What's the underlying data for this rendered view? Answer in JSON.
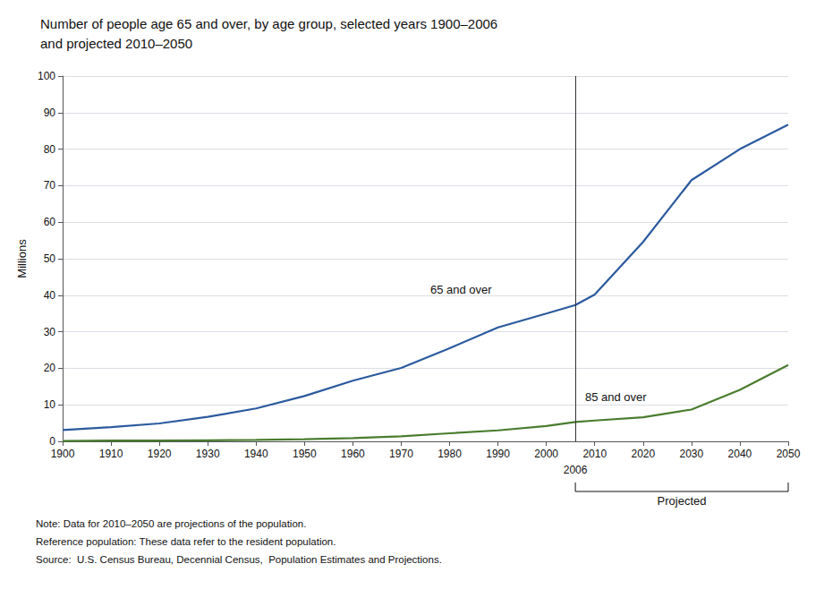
{
  "chart_data": {
    "type": "line",
    "title": "Number of people age 65 and over, by age group, selected years 1900–2006",
    "subtitle": "and projected 2010–2050",
    "y_label": "Millions",
    "series": [
      {
        "color": "#2b5a9e",
        "x": [
          1900,
          1910,
          1920,
          1930,
          1940,
          1950,
          1960,
          1970,
          1980,
          1990,
          2000,
          2006
        ],
        "values": [
          3.1,
          3.9,
          4.9,
          6.7,
          9.0,
          12.4,
          16.6,
          20.1,
          25.5,
          31.2,
          35.0,
          37.3
        ]
      },
      {
        "color": "#2b5a9e",
        "x": [
          2006,
          2010,
          2020,
          2030,
          2040,
          2050
        ],
        "values": [
          37.3,
          40.2,
          54.6,
          71.5,
          80.0,
          86.7
        ]
      },
      {
        "color": "#4a7c2f",
        "x": [
          1900,
          1910,
          1920,
          1930,
          1940,
          1950,
          1960,
          1970,
          1980,
          1990,
          2000,
          2006
        ],
        "values": [
          0.1,
          0.2,
          0.2,
          0.3,
          0.4,
          0.6,
          0.9,
          1.4,
          2.2,
          3.0,
          4.2,
          5.3
        ]
      },
      {
        "color": "#4a7c2f",
        "x": [
          2006,
          2010,
          2020,
          2030,
          2040,
          2050
        ],
        "values": [
          5.3,
          5.7,
          6.6,
          8.7,
          14.1,
          20.9
        ]
      }
    ],
    "annotations": [
      {
        "text": "65 and over",
        "x": 1976,
        "y": 40
      },
      {
        "text": "85 and over",
        "x": 2008,
        "y": 10.5
      }
    ],
    "divider": {
      "x": 2006,
      "label": "2006"
    },
    "projected_span": {
      "from": 2006,
      "to": 2050,
      "label": "Projected"
    },
    "notes": [
      "Note: Data for 2010–2050 are projections of the population.",
      "Reference population: These data refer to the resident population.",
      "Source:  U.S. Census Bureau, Decennial Census,  Population Estimates and Projections."
    ],
    "xlim": [
      1900,
      2050
    ],
    "xticks": [
      1900,
      1910,
      1920,
      1930,
      1940,
      1950,
      1960,
      1970,
      1980,
      1990,
      2000,
      2010,
      2020,
      2030,
      2040,
      2050
    ],
    "ylim": [
      0,
      100
    ],
    "yticks": [
      0,
      10,
      20,
      30,
      40,
      50,
      60,
      70,
      80,
      90,
      100
    ],
    "grid": true
  }
}
